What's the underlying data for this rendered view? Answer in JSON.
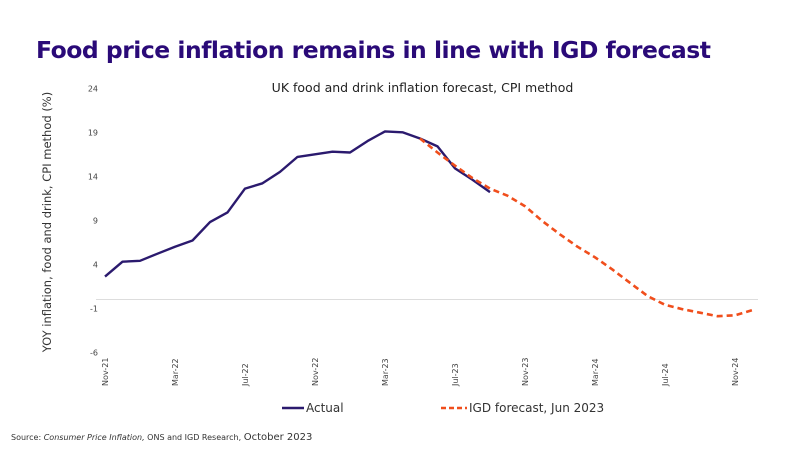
{
  "page": {
    "title": "Food price inflation remains in line with IGD forecast",
    "source_prefix": "Source: ",
    "source_italic": "Consumer Price Inflation,",
    "source_middle": " ONS and IGD Research, ",
    "source_date": "October 2023"
  },
  "colors": {
    "title": "#2a0a78",
    "actual": "#2b1a6e",
    "forecast": "#f04e1c",
    "axis": "#dddddd"
  },
  "chart_data": {
    "type": "line",
    "title": "UK food and drink inflation forecast, CPI method",
    "xlabel": "",
    "ylabel": "YOY inflation, food and drink, CPI method (%)",
    "ylim": [
      -6,
      24
    ],
    "yticks": [
      24,
      19,
      14,
      9,
      4,
      -1,
      -6
    ],
    "x": [
      "Nov-21",
      "Dec-21",
      "Jan-22",
      "Feb-22",
      "Mar-22",
      "Apr-22",
      "May-22",
      "Jun-22",
      "Jul-22",
      "Aug-22",
      "Sep-22",
      "Oct-22",
      "Nov-22",
      "Dec-22",
      "Jan-23",
      "Feb-23",
      "Mar-23",
      "Apr-23",
      "May-23",
      "Jun-23",
      "Jul-23",
      "Aug-23",
      "Sep-23",
      "Oct-23",
      "Nov-23",
      "Dec-23",
      "Jan-24",
      "Feb-24",
      "Mar-24",
      "Apr-24",
      "May-24",
      "Jun-24",
      "Jul-24",
      "Aug-24",
      "Sep-24",
      "Oct-24",
      "Nov-24",
      "Dec-24"
    ],
    "xticks": [
      "Nov-21",
      "Mar-22",
      "Jul-22",
      "Nov-22",
      "Mar-23",
      "Jul-23",
      "Nov-23",
      "Mar-24",
      "Jul-24",
      "Nov-24"
    ],
    "grid": false,
    "legend_position": "bottom",
    "series": [
      {
        "name": "Actual",
        "style": "solid",
        "start": "Nov-21",
        "values": [
          2.6,
          4.3,
          4.4,
          5.2,
          6.0,
          6.7,
          8.8,
          9.9,
          12.6,
          13.2,
          14.5,
          16.2,
          16.5,
          16.8,
          16.7,
          18.0,
          19.1,
          19.0,
          18.3,
          17.4,
          14.9,
          13.6,
          12.2
        ]
      },
      {
        "name": "IGD forecast, Jun 2023",
        "style": "dashed",
        "start": "May-23",
        "values": [
          18.3,
          16.7,
          15.2,
          13.8,
          12.6,
          11.8,
          10.6,
          8.9,
          7.4,
          6.0,
          4.8,
          3.4,
          1.9,
          0.4,
          -0.6,
          -1.1,
          -1.5,
          -1.9,
          -1.8,
          -1.2
        ]
      }
    ]
  }
}
